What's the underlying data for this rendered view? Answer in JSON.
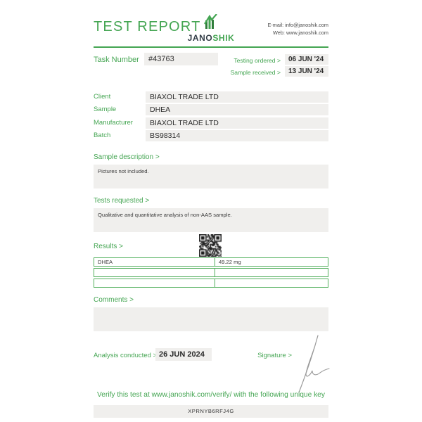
{
  "header": {
    "title": "TEST REPORT",
    "logo": {
      "jano": "JANO",
      "shik": "SHIK"
    },
    "contact": {
      "email_line": "E-mail: info@janoshik.com",
      "web_line": "Web: www.janoshik.com"
    }
  },
  "task": {
    "label": "Task Number",
    "number": "#43763",
    "testing_ordered_label": "Testing ordered  >",
    "testing_ordered_value": "06 JUN '24",
    "sample_received_label": "Sample received >",
    "sample_received_value": "13 JUN '24"
  },
  "details": {
    "rows": [
      {
        "label": "Client",
        "value": "BIAXOL TRADE LTD"
      },
      {
        "label": "Sample",
        "value": "DHEA"
      },
      {
        "label": "Manufacturer",
        "value": "BIAXOL TRADE LTD"
      },
      {
        "label": "Batch",
        "value": "BS98314"
      }
    ]
  },
  "sample_description": {
    "label": "Sample description >",
    "text": "Pictures not included."
  },
  "tests_requested": {
    "label": "Tests requested >",
    "text": "Qualitative and quantitative analysis of non-AAS sample."
  },
  "results": {
    "label": "Results >",
    "table": {
      "rows": [
        [
          "DHEA",
          "49.22 mg"
        ],
        [
          "",
          ""
        ],
        [
          "",
          ""
        ]
      ]
    }
  },
  "comments": {
    "label": "Comments >",
    "text": ""
  },
  "analysis": {
    "label": "Analysis conducted >",
    "date": "26 JUN 2024",
    "signature_label": "Signature >"
  },
  "footer": {
    "verify_text": "Verify this test at www.janoshik.com/verify/ with the following unique key",
    "unique_key": "XPRNYB6RFJ4G"
  },
  "colors": {
    "green": "#44a552",
    "logo_dark": "#333d47",
    "box_gray": "#f0efed",
    "table_border": "#53b05e",
    "dark_text": "#3a3a3a"
  }
}
